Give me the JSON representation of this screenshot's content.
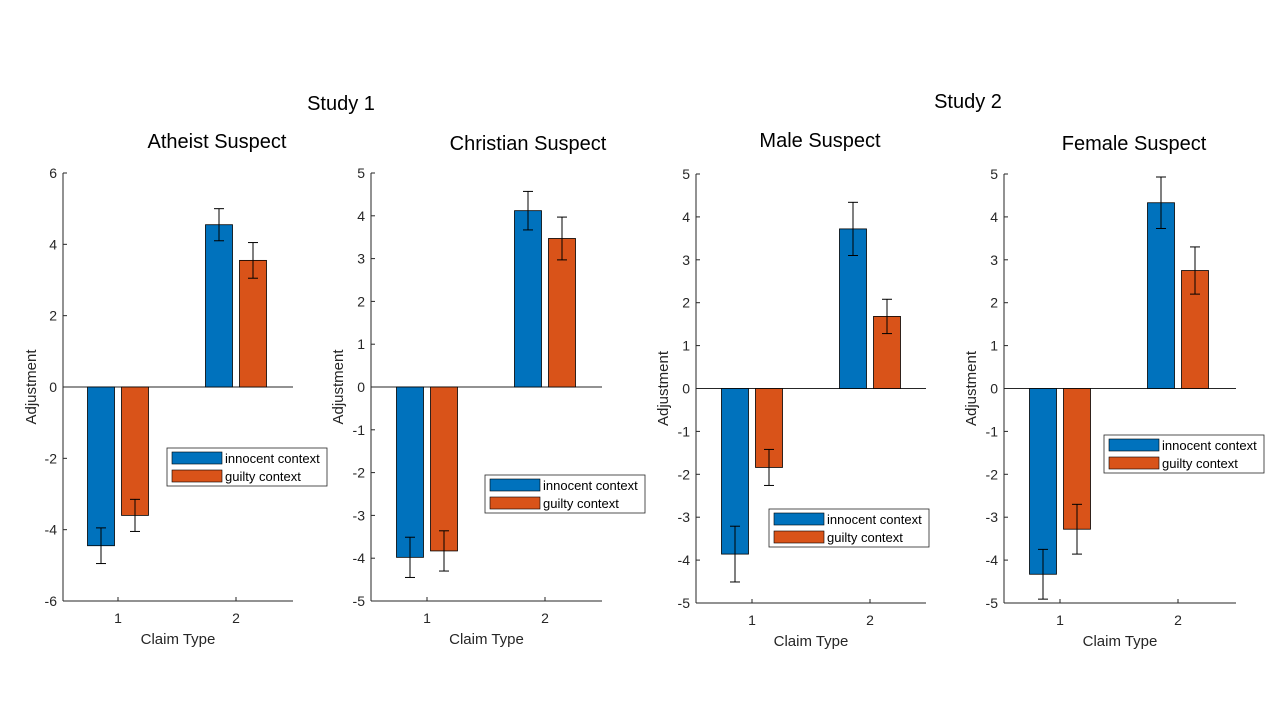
{
  "figure_titles": [
    "Study 1",
    "Study 2"
  ],
  "colors": {
    "innocent": "#0072BD",
    "guilty": "#D95319"
  },
  "chart_data": [
    {
      "type": "bar",
      "title": "Atheist Suspect",
      "xlabel": "Claim Type",
      "ylabel": "Adjustment",
      "categories": [
        "1",
        "2"
      ],
      "ylim": [
        -6,
        6
      ],
      "yticks": [
        -6,
        -4,
        -2,
        0,
        2,
        4,
        6
      ],
      "legend_position": "center-right",
      "series": [
        {
          "name": "innocent context",
          "values": [
            -4.45,
            4.55
          ],
          "err": [
            0.5,
            0.45
          ]
        },
        {
          "name": "guilty context",
          "values": [
            -3.6,
            3.55
          ],
          "err": [
            0.45,
            0.5
          ]
        }
      ]
    },
    {
      "type": "bar",
      "title": "Christian Suspect",
      "xlabel": "Claim Type",
      "ylabel": "Adjustment",
      "categories": [
        "1",
        "2"
      ],
      "ylim": [
        -5,
        5
      ],
      "yticks": [
        -5,
        -4,
        -3,
        -2,
        -1,
        0,
        1,
        2,
        3,
        4,
        5
      ],
      "legend_position": "center-right",
      "series": [
        {
          "name": "innocent context",
          "values": [
            -3.98,
            4.12
          ],
          "err": [
            0.47,
            0.45
          ]
        },
        {
          "name": "guilty context",
          "values": [
            -3.83,
            3.47
          ],
          "err": [
            0.47,
            0.5
          ]
        }
      ]
    },
    {
      "type": "bar",
      "title": "Male Suspect",
      "xlabel": "Claim Type",
      "ylabel": "Adjustment",
      "categories": [
        "1",
        "2"
      ],
      "ylim": [
        -5,
        5
      ],
      "yticks": [
        -5,
        -4,
        -3,
        -2,
        -1,
        0,
        1,
        2,
        3,
        4,
        5
      ],
      "legend_position": "bottom-right",
      "series": [
        {
          "name": "innocent context",
          "values": [
            -3.86,
            3.72
          ],
          "err": [
            0.65,
            0.62
          ]
        },
        {
          "name": "guilty context",
          "values": [
            -1.84,
            1.68
          ],
          "err": [
            0.42,
            0.4
          ]
        }
      ]
    },
    {
      "type": "bar",
      "title": "Female Suspect",
      "xlabel": "Claim Type",
      "ylabel": "Adjustment",
      "categories": [
        "1",
        "2"
      ],
      "ylim": [
        -5,
        5
      ],
      "yticks": [
        -5,
        -4,
        -3,
        -2,
        -1,
        0,
        1,
        2,
        3,
        4,
        5
      ],
      "legend_position": "center-right",
      "series": [
        {
          "name": "innocent context",
          "values": [
            -4.33,
            4.33
          ],
          "err": [
            0.58,
            0.6
          ]
        },
        {
          "name": "guilty context",
          "values": [
            -3.28,
            2.75
          ],
          "err": [
            0.58,
            0.55
          ]
        }
      ]
    }
  ]
}
